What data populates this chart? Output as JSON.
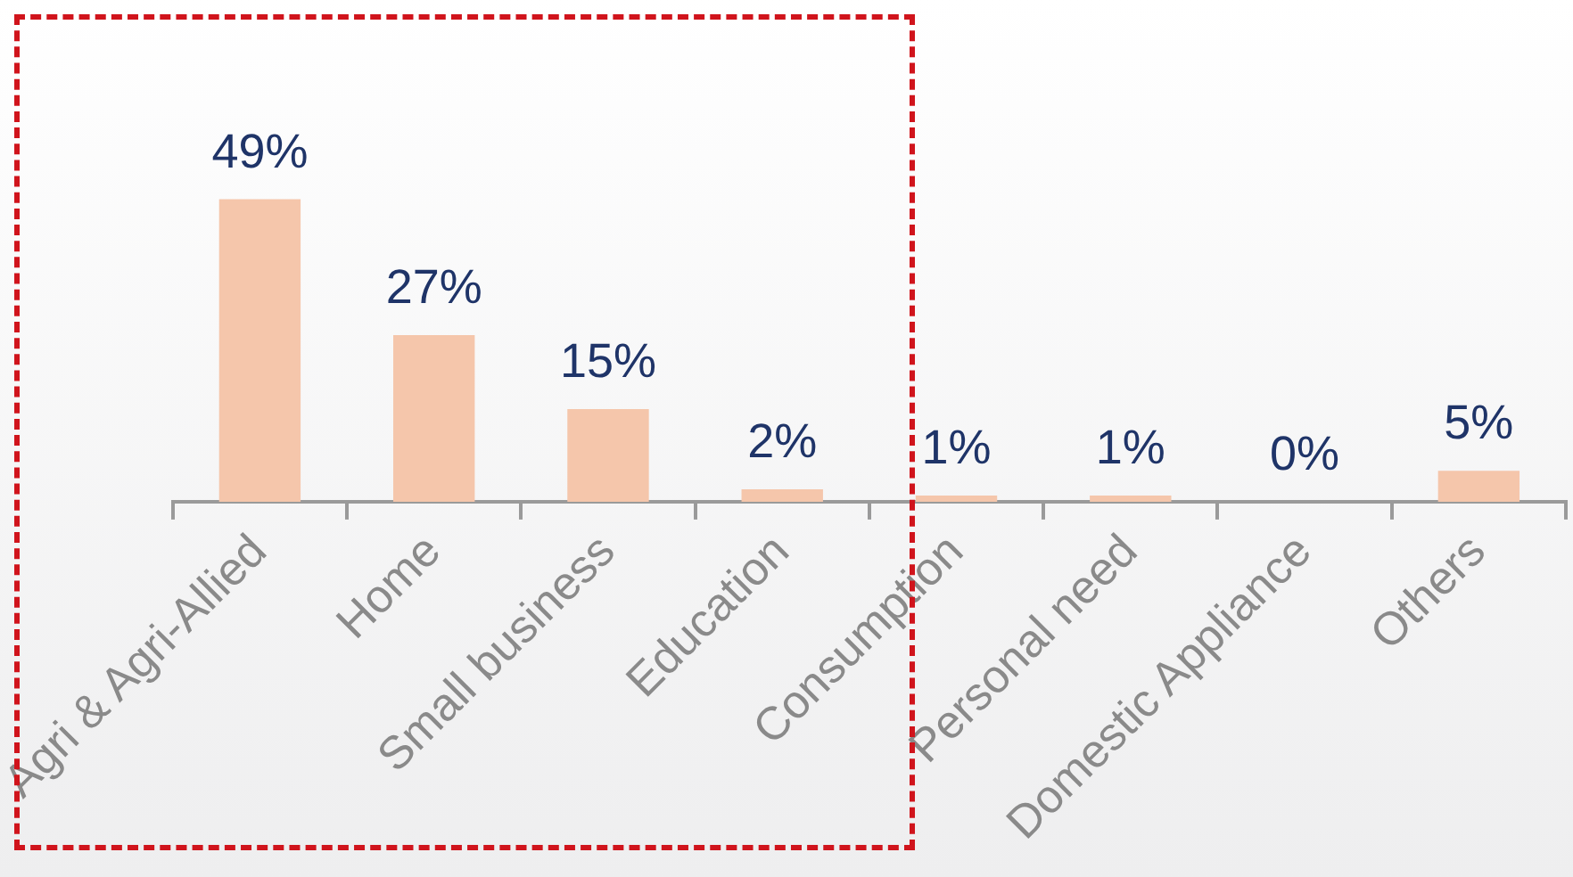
{
  "chart_data": {
    "type": "bar",
    "categories": [
      "Agri & Agri-Allied",
      "Home",
      "Small business",
      "Education",
      "Consumption",
      "Personal need",
      "Domestic Appliance",
      "Others"
    ],
    "values": [
      49,
      27,
      15,
      2,
      1,
      1,
      0,
      5
    ],
    "value_labels": [
      "49%",
      "27%",
      "15%",
      "2%",
      "1%",
      "1%",
      "0%",
      "5%"
    ],
    "color": "#f5c6ab",
    "legend": false
  }
}
